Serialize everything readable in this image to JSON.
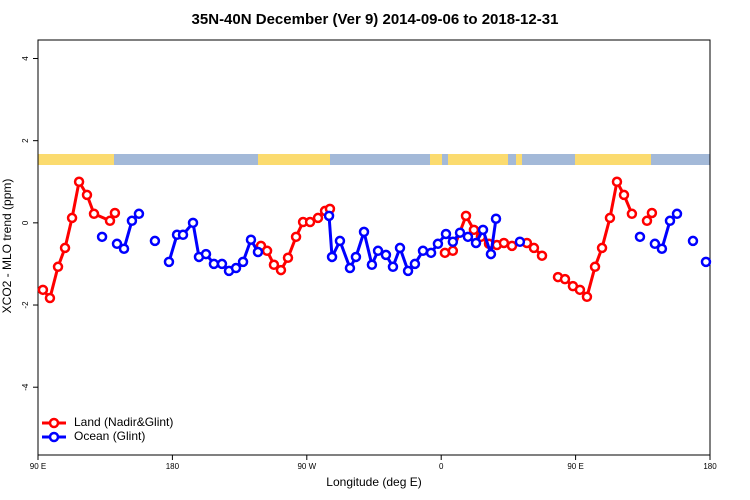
{
  "chart_data": {
    "type": "line",
    "title": "35N-40N December (Ver 9)   2014-09-06 to 2018-12-31",
    "x_label": "Longitude (deg E)",
    "y_label": "XCO2 - MLO trend (ppm)",
    "xlim": [
      90,
      540
    ],
    "ylim": [
      -5.65,
      4.45
    ],
    "xticks": [
      {
        "value": 90,
        "label": "90 E"
      },
      180,
      {
        "value": 270,
        "label": "90 W"
      },
      {
        "value": 360,
        "label": "0"
      },
      {
        "value": 450,
        "label": "90 E"
      },
      {
        "value": 540,
        "label": "180"
      }
    ],
    "yticks": [
      -4,
      -2,
      0,
      2,
      4
    ],
    "legend": "bottom-left",
    "series": [
      {
        "name": "Land (Nadir&Glint)",
        "color": "#ff0000",
        "x": [
          93.3,
          98.0,
          103.4,
          108.1,
          112.8,
          117.5,
          122.8,
          127.5,
          138.2,
          141.5,
          null,
          239.3,
          243.4,
          248.0,
          252.7,
          257.4,
          262.8,
          267.5,
          272.2,
          277.5,
          282.2,
          285.5,
          null,
          362.5,
          367.8,
          376.6,
          381.9,
          386.6,
          392.0,
          397.3,
          402.0,
          407.4,
          417.4,
          422.1,
          427.5,
          null,
          438.2,
          442.9,
          448.2,
          452.9,
          457.6,
          463.0,
          467.7,
          473.0,
          477.7,
          482.4,
          487.7,
          null,
          497.8,
          501.1
        ],
        "values": [
          -1.63,
          -1.83,
          -1.07,
          -0.61,
          0.12,
          1.0,
          0.68,
          0.22,
          0.05,
          0.24,
          null,
          -0.56,
          -0.68,
          -1.02,
          -1.15,
          -0.85,
          -0.34,
          0.02,
          0.02,
          0.12,
          0.29,
          0.34,
          null,
          -0.73,
          -0.68,
          0.17,
          -0.17,
          -0.34,
          -0.51,
          -0.54,
          -0.49,
          -0.56,
          -0.49,
          -0.61,
          -0.8,
          null,
          -1.32,
          -1.37,
          -1.54,
          -1.63,
          -1.8,
          -1.07,
          -0.61,
          0.12,
          1.0,
          0.68,
          0.22,
          null,
          0.05,
          0.24
        ]
      },
      {
        "name": "Ocean (Glint)",
        "color": "#0000ff",
        "x": [
          132.9,
          null,
          142.9,
          147.6,
          152.9,
          157.6,
          null,
          168.3,
          null,
          177.7,
          183.1,
          187.1,
          193.8,
          197.8,
          202.5,
          207.8,
          213.2,
          217.9,
          222.6,
          227.3,
          232.6,
          237.3,
          null,
          284.9,
          286.9,
          292.2,
          298.9,
          302.9,
          308.3,
          313.6,
          317.7,
          323.0,
          327.7,
          332.4,
          337.8,
          342.4,
          347.8,
          353.2,
          357.8,
          363.2,
          367.8,
          372.6,
          377.9,
          383.3,
          388.0,
          393.3,
          396.7,
          null,
          412.7,
          null,
          493.1,
          null,
          503.1,
          507.8,
          513.2,
          517.9,
          null,
          528.6,
          null,
          537.3
        ],
        "values": [
          -0.34,
          null,
          -0.51,
          -0.63,
          0.05,
          0.22,
          null,
          -0.44,
          null,
          -0.95,
          -0.29,
          -0.29,
          0.0,
          -0.83,
          -0.76,
          -1.0,
          -1.0,
          -1.17,
          -1.1,
          -0.95,
          -0.41,
          -0.71,
          null,
          0.17,
          -0.83,
          -0.44,
          -1.1,
          -0.83,
          -0.22,
          -1.02,
          -0.68,
          -0.78,
          -1.07,
          -0.61,
          -1.17,
          -1.0,
          -0.68,
          -0.73,
          -0.51,
          -0.27,
          -0.46,
          -0.24,
          -0.34,
          -0.49,
          -0.17,
          -0.76,
          0.1,
          null,
          -0.46,
          null,
          -0.34,
          null,
          -0.51,
          -0.63,
          0.05,
          0.22,
          null,
          -0.44,
          null,
          -0.95
        ]
      }
    ]
  }
}
